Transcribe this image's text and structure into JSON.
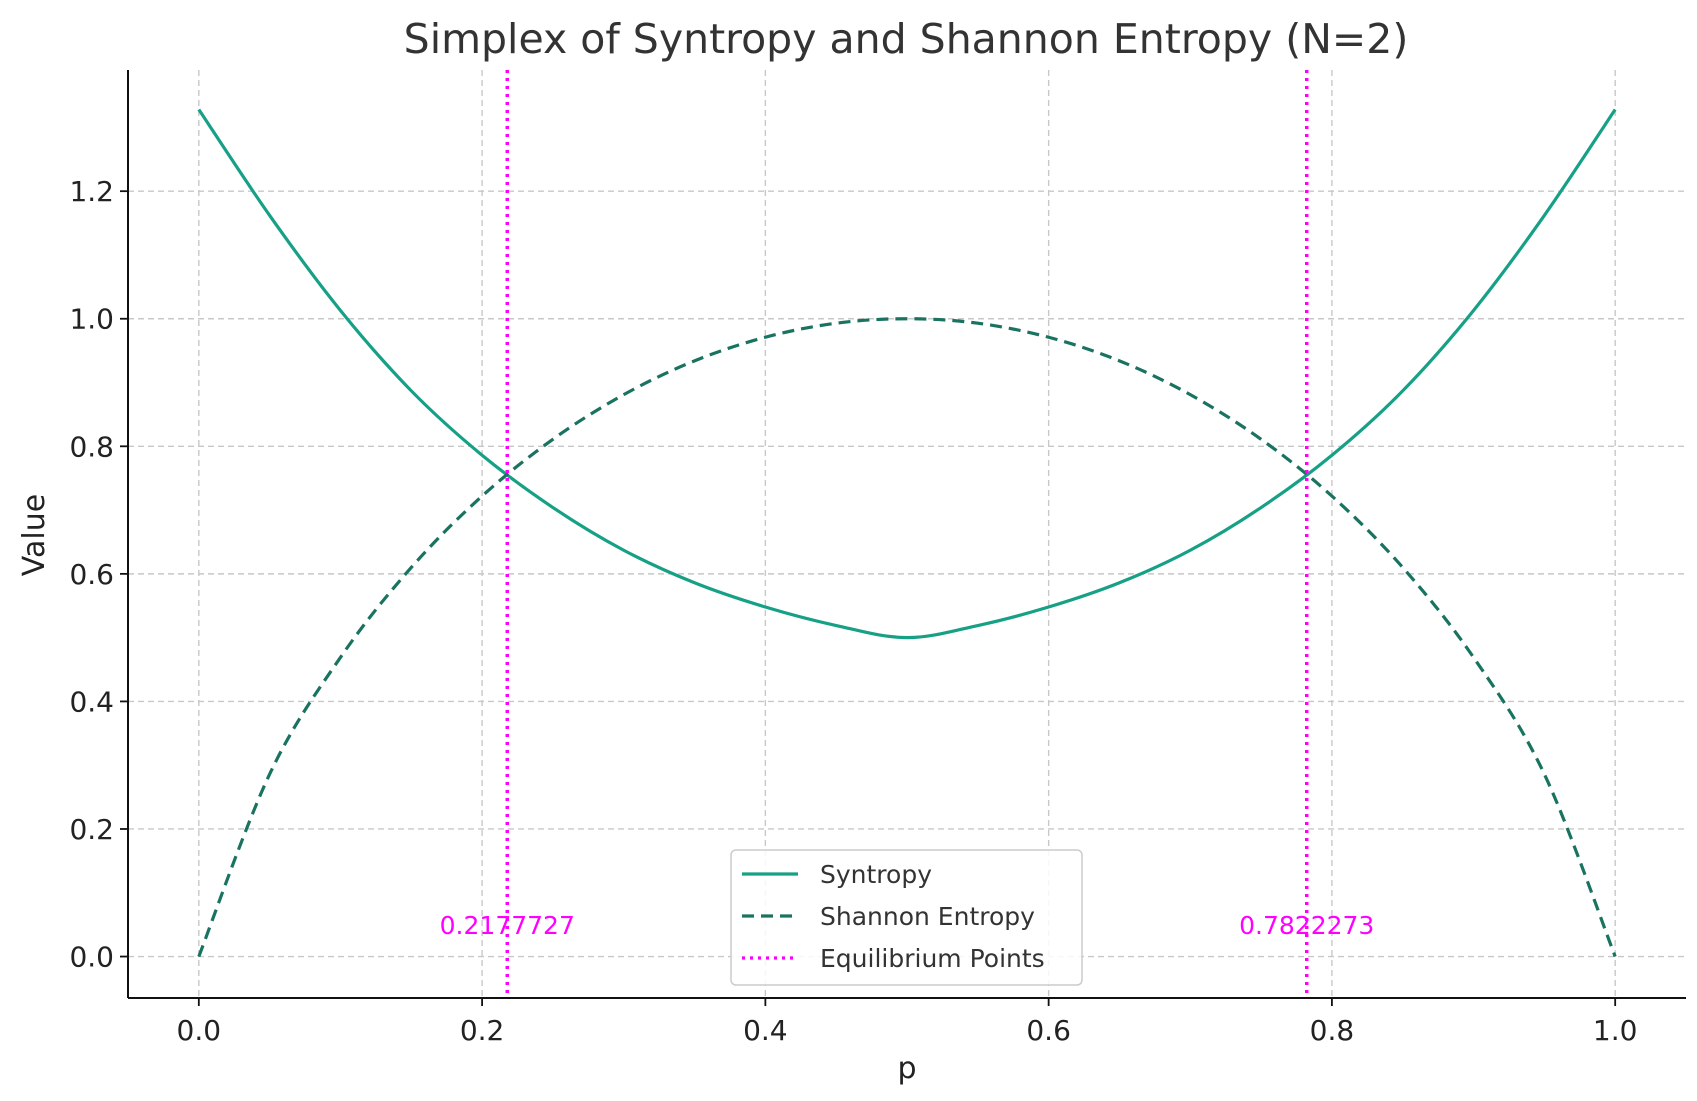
{
  "chart_data": {
    "type": "line",
    "title": "Simplex of Syntropy and Shannon Entropy (N=2)",
    "xlabel": "p",
    "ylabel": "Value",
    "xlim": [
      -0.05,
      1.05
    ],
    "ylim": [
      -0.065,
      1.39
    ],
    "x_ticks": [
      0.0,
      0.2,
      0.4,
      0.6,
      0.8,
      1.0
    ],
    "x_tick_labels": [
      "0.0",
      "0.2",
      "0.4",
      "0.6",
      "0.8",
      "1.0"
    ],
    "y_ticks": [
      0.0,
      0.2,
      0.4,
      0.6,
      0.8,
      1.0,
      1.2
    ],
    "y_tick_labels": [
      "0.0",
      "0.2",
      "0.4",
      "0.6",
      "0.8",
      "1.0",
      "1.2"
    ],
    "grid": true,
    "legend_position": "lower center",
    "x": [
      0.0,
      0.05,
      0.1,
      0.15,
      0.2,
      0.25,
      0.3,
      0.35,
      0.4,
      0.45,
      0.5,
      0.55,
      0.6,
      0.65,
      0.7,
      0.75,
      0.8,
      0.85,
      0.9,
      0.95,
      1.0
    ],
    "series": [
      {
        "name": "Syntropy",
        "style": "solid",
        "color": "#16a085",
        "values": [
          1.328,
          1.162,
          1.013,
          0.887,
          0.786,
          0.704,
          0.637,
          0.586,
          0.548,
          0.519,
          0.5,
          0.519,
          0.548,
          0.586,
          0.637,
          0.704,
          0.786,
          0.887,
          1.013,
          1.162,
          1.328
        ]
      },
      {
        "name": "Shannon Entropy",
        "style": "dashed",
        "color": "#1a7360",
        "values": [
          0.0,
          0.286,
          0.469,
          0.61,
          0.722,
          0.811,
          0.881,
          0.934,
          0.971,
          0.993,
          1.0,
          0.993,
          0.971,
          0.934,
          0.881,
          0.811,
          0.722,
          0.61,
          0.469,
          0.286,
          0.0
        ]
      },
      {
        "name": "Equilibrium Points",
        "style": "dotted",
        "color": "#ff00ff",
        "vlines": [
          0.2177727,
          0.7822273
        ]
      }
    ],
    "annotations": [
      {
        "text": "0.2177727",
        "x": 0.2177727,
        "y": 0.035
      },
      {
        "text": "0.7822273",
        "x": 0.7822273,
        "y": 0.035
      }
    ]
  }
}
